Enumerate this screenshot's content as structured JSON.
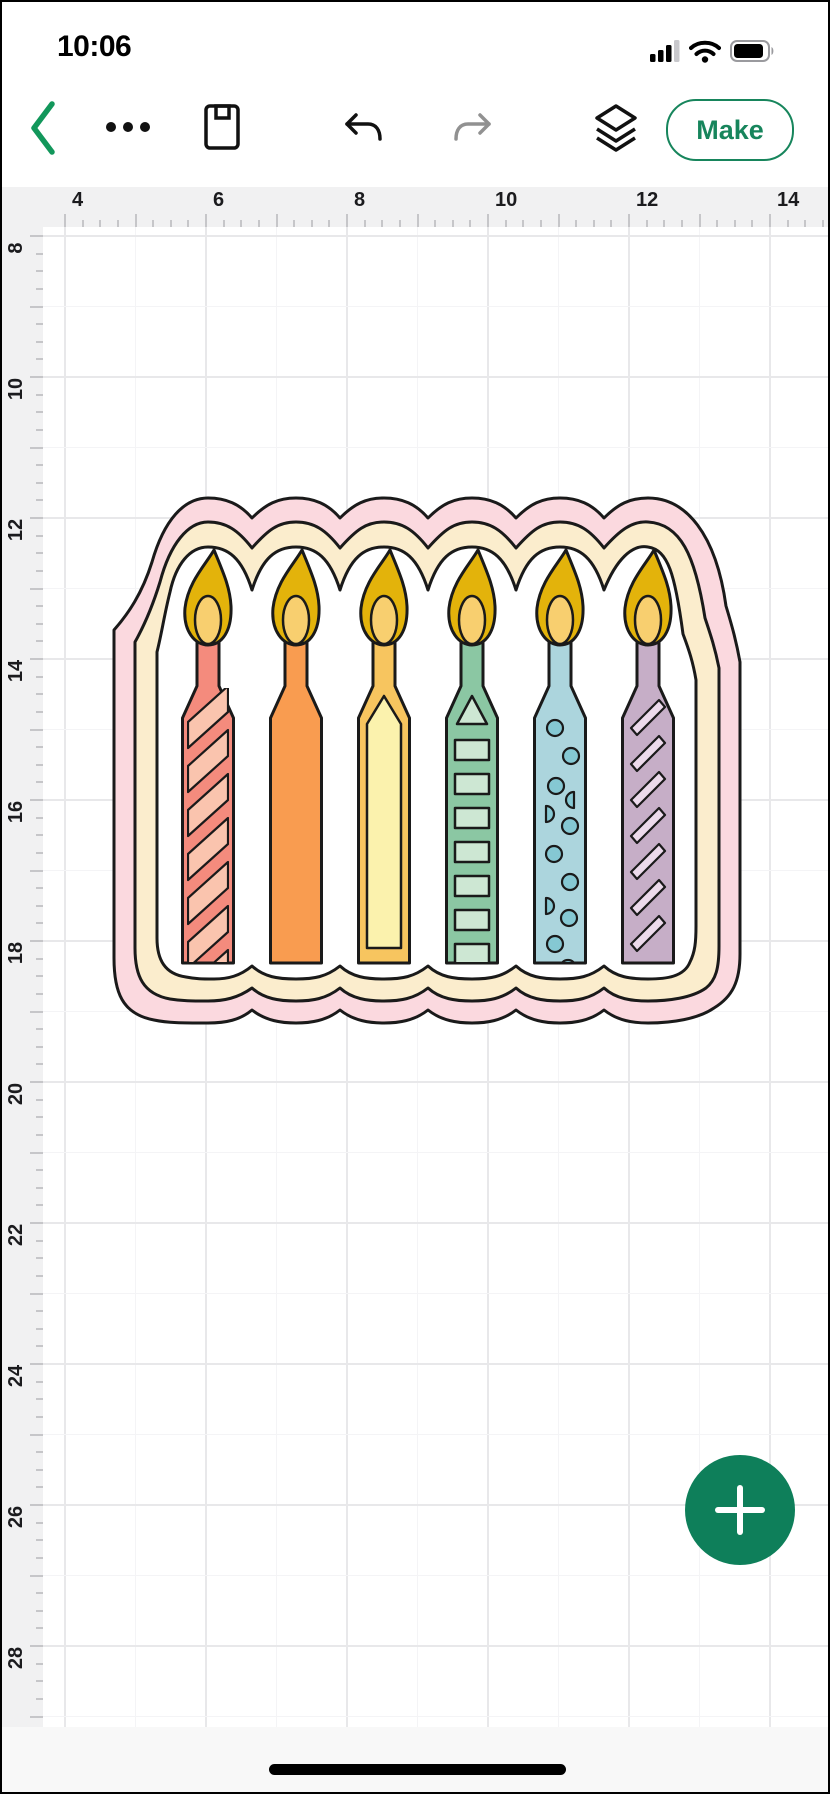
{
  "status_bar": {
    "time": "10:06",
    "icons": [
      "cellular-signal",
      "wifi",
      "battery"
    ]
  },
  "toolbar": {
    "icons": [
      "back-chevron",
      "more-options",
      "save",
      "undo",
      "redo",
      "layers"
    ],
    "make_label": "Make"
  },
  "rulers": {
    "horizontal_labels": [
      "4",
      "6",
      "8",
      "10",
      "12",
      "14"
    ],
    "vertical_labels": [
      "8",
      "10",
      "12",
      "14",
      "16",
      "18",
      "20",
      "22",
      "24",
      "26",
      "28"
    ],
    "units_per_major_gridline": 2
  },
  "fab": {
    "icon": "plus",
    "color": "#0E7F5A"
  },
  "design": {
    "description": "birthday candles sticker with scalloped layered border",
    "outline": "#1a1a1a",
    "bands": {
      "outer": "#FBD9DF",
      "middle": "#FBEDCD",
      "inner": "#FFFFFF"
    },
    "flame": {
      "outer": "#E3B30B",
      "inner": "#F8CF6F"
    },
    "candles": [
      {
        "name": "stripe-salmon",
        "body": "#F48B7D",
        "pattern": "#FAC4AE"
      },
      {
        "name": "solid-orange",
        "body": "#F99C50",
        "pattern": ""
      },
      {
        "name": "panel-yellow",
        "body": "#F7C55F",
        "pattern": "#FBF2AD"
      },
      {
        "name": "blocks-green",
        "body": "#8BC7A3",
        "pattern": "#CDE7D3"
      },
      {
        "name": "dots-blue",
        "body": "#ACD5DD",
        "pattern": "#85C8D3"
      },
      {
        "name": "stripe-purple",
        "body": "#C6AEC7",
        "pattern": "#ECDAEB"
      }
    ]
  },
  "colors": {
    "accent_green": "#17855C",
    "fab_green": "#0E7F5A",
    "back_chevron_green": "#12975B",
    "ruler_background": "#f1f1f2",
    "grid_major": "#e8e8ea",
    "grid_minor": "#f4f4f6"
  }
}
